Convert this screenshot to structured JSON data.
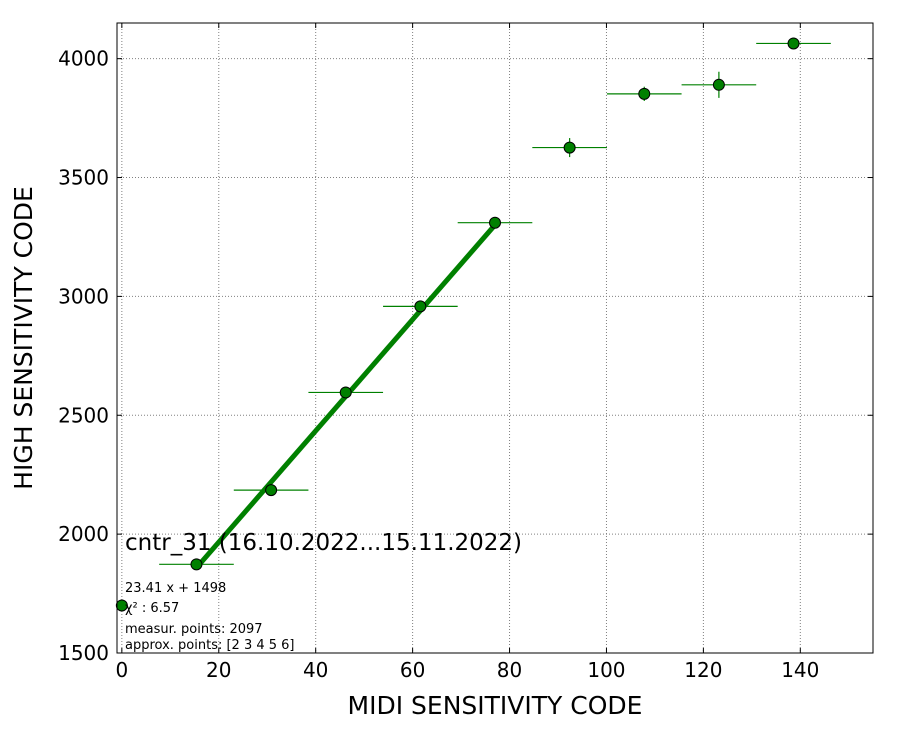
{
  "chart_data": {
    "type": "scatter",
    "title": "",
    "xlabel": "MIDI SENSITIVITY CODE",
    "ylabel": "HIGH SENSITIVITY CODE",
    "xlim": [
      -1,
      155
    ],
    "ylim": [
      1500,
      4150
    ],
    "xticks": [
      0,
      20,
      40,
      60,
      80,
      100,
      120,
      140
    ],
    "yticks": [
      1500,
      2000,
      2500,
      3000,
      3500,
      4000
    ],
    "grid": true,
    "colors": {
      "marker": "#008000",
      "fit": "#008000",
      "grid": "#808080"
    },
    "points": [
      {
        "x": 0.0,
        "y": 1700,
        "xerr": 0.0,
        "yerr": 0
      },
      {
        "x": 15.4,
        "y": 1873,
        "xerr": 7.7,
        "yerr": 8
      },
      {
        "x": 30.8,
        "y": 2185,
        "xerr": 7.7,
        "yerr": 8
      },
      {
        "x": 46.2,
        "y": 2596,
        "xerr": 7.7,
        "yerr": 10
      },
      {
        "x": 61.6,
        "y": 2958,
        "xerr": 7.7,
        "yerr": 10
      },
      {
        "x": 77.0,
        "y": 3310,
        "xerr": 7.7,
        "yerr": 12
      },
      {
        "x": 92.4,
        "y": 3626,
        "xerr": 7.7,
        "yerr": 40
      },
      {
        "x": 107.8,
        "y": 3852,
        "xerr": 7.7,
        "yerr": 30
      },
      {
        "x": 123.2,
        "y": 3890,
        "xerr": 7.7,
        "yerr": 55
      },
      {
        "x": 138.6,
        "y": 4064,
        "xerr": 7.7,
        "yerr": 10
      }
    ],
    "fit": {
      "slope": 23.41,
      "intercept": 1498,
      "x_from": 15.4,
      "x_to": 77.0
    },
    "annotations": {
      "title_text": "cntr_31 (16.10.2022...15.11.2022)",
      "equation": "23.41 x + 1498",
      "chi2": "χ² : 6.57",
      "measur": "measur. points: 2097",
      "approx": "approx. points: [2 3 4 5 6]"
    }
  }
}
